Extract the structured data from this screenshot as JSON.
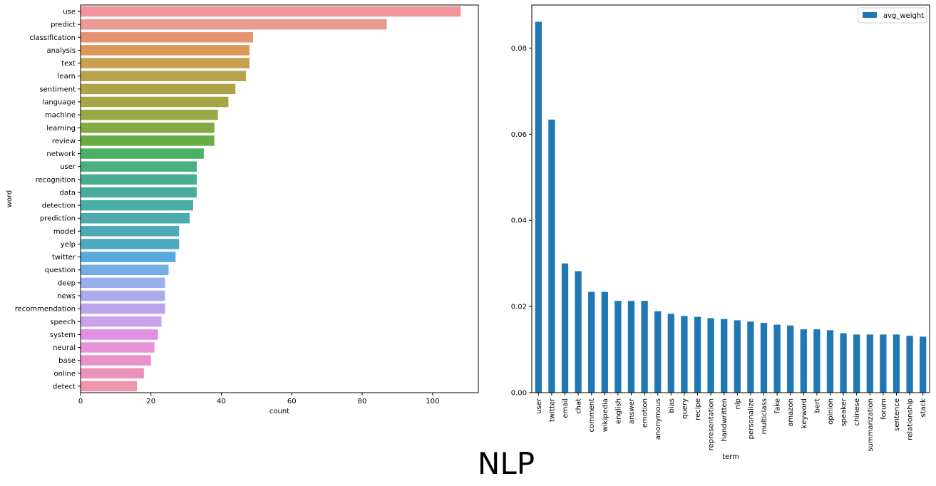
{
  "suptitle": "NLP",
  "chart_data": [
    {
      "type": "bar",
      "orientation": "horizontal",
      "xlabel": "count",
      "ylabel": "word",
      "xlim": [
        0,
        113
      ],
      "xticks": [
        0,
        20,
        40,
        60,
        80,
        100
      ],
      "grid": false,
      "categories": [
        "use",
        "predict",
        "classification",
        "analysis",
        "text",
        "learn",
        "sentiment",
        "language",
        "machine",
        "learning",
        "review",
        "network",
        "user",
        "recognition",
        "data",
        "detection",
        "prediction",
        "model",
        "yelp",
        "twitter",
        "question",
        "deep",
        "news",
        "recommendation",
        "speech",
        "system",
        "neural",
        "base",
        "online",
        "detect"
      ],
      "values": [
        108,
        87,
        49,
        48,
        48,
        47,
        44,
        42,
        39,
        38,
        38,
        35,
        33,
        33,
        33,
        32,
        31,
        28,
        28,
        27,
        25,
        24,
        24,
        24,
        23,
        22,
        21,
        20,
        18,
        16
      ],
      "colors": [
        "#f0949d",
        "#ec9a90",
        "#e59473",
        "#dd9958",
        "#c99f50",
        "#b8a24c",
        "#aea346",
        "#a5a645",
        "#98a844",
        "#84ab43",
        "#6bad45",
        "#4bb063",
        "#47af80",
        "#48ae8e",
        "#4aad9b",
        "#4aada6",
        "#4babae",
        "#4caab8",
        "#4da8c0",
        "#56a8dd",
        "#74ace6",
        "#98aeed",
        "#aaaaee",
        "#baa4ec",
        "#cca1ea",
        "#e08fe5",
        "#e791d8",
        "#e992c9",
        "#ea93bb",
        "#ec95ab"
      ]
    },
    {
      "type": "bar",
      "orientation": "vertical",
      "xlabel": "term",
      "ylabel": "",
      "ylim": [
        0,
        0.09
      ],
      "yticks": [
        0.0,
        0.02,
        0.04,
        0.06,
        0.08
      ],
      "ytick_labels": [
        "0.00",
        "0.02",
        "0.04",
        "0.06",
        "0.08"
      ],
      "grid": false,
      "legend": "top-right",
      "color": "#1f77b4",
      "series": [
        {
          "name": "avg_weight"
        }
      ],
      "categories": [
        "user",
        "twitter",
        "email",
        "chat",
        "comment",
        "wikipedia",
        "english",
        "answer",
        "emotion",
        "anonymous",
        "bias",
        "query",
        "recipe",
        "representation",
        "handwritten",
        "nlp",
        "personalize",
        "multiclass",
        "fake",
        "amazon",
        "keyword",
        "bert",
        "opinion",
        "speaker",
        "chinese",
        "summarization",
        "forum",
        "sentence",
        "relationship",
        "stack"
      ],
      "values": [
        0.0861,
        0.0634,
        0.03,
        0.0282,
        0.0234,
        0.0234,
        0.0213,
        0.0213,
        0.0213,
        0.0189,
        0.0183,
        0.0178,
        0.0176,
        0.0173,
        0.0171,
        0.0168,
        0.0165,
        0.0162,
        0.0158,
        0.0156,
        0.0147,
        0.0147,
        0.0145,
        0.0138,
        0.0135,
        0.0135,
        0.0135,
        0.0135,
        0.0132,
        0.013
      ]
    }
  ]
}
